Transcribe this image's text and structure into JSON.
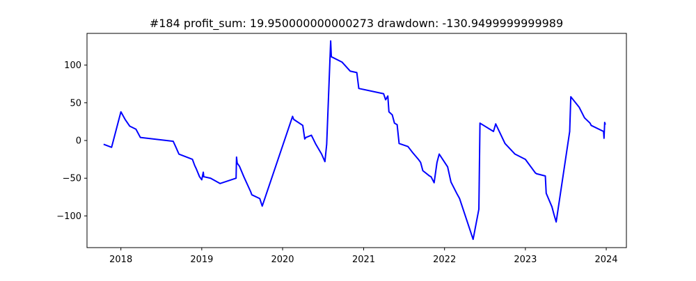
{
  "chart_data": {
    "type": "line",
    "title": "#184   profit_sum: 19.950000000000273 drawdown: -130.9499999999989",
    "xlabel": "",
    "ylabel": "",
    "x_axis": {
      "type": "date",
      "range": [
        "2017-08-01",
        "2024-04-01"
      ],
      "ticks": [
        "2018",
        "2019",
        "2020",
        "2021",
        "2022",
        "2023",
        "2024"
      ]
    },
    "y_axis": {
      "range": [
        -142,
        142
      ],
      "ticks": [
        -100,
        -50,
        0,
        50,
        100
      ],
      "tick_labels": [
        "−100",
        "−50",
        "0",
        "50",
        "100"
      ]
    },
    "grid": false,
    "legend": "none",
    "colors": {
      "line": "#0000ff"
    },
    "series": [
      {
        "x": [
          "2017-10-15",
          "2017-11-20",
          "2018-01-01",
          "2018-01-20",
          "2018-02-10",
          "2018-03-10",
          "2018-03-30",
          "2018-08-25",
          "2018-09-05",
          "2018-09-20",
          "2018-11-20",
          "2018-11-30",
          "2018-12-08",
          "2018-12-22",
          "2019-01-01",
          "2019-01-08",
          "2019-01-10",
          "2019-02-10",
          "2019-03-25",
          "2019-06-05",
          "2019-06-07",
          "2019-06-10",
          "2019-06-20",
          "2019-07-10",
          "2019-08-10",
          "2019-08-15",
          "2019-09-20",
          "2019-10-01",
          "2020-02-15",
          "2020-02-20",
          "2020-04-01",
          "2020-04-10",
          "2020-04-15",
          "2020-05-10",
          "2020-05-30",
          "2020-06-25",
          "2020-07-10",
          "2020-07-18",
          "2020-08-05",
          "2020-08-08",
          "2020-08-15",
          "2020-09-25",
          "2020-11-01",
          "2020-12-01",
          "2020-12-10",
          "2021-04-01",
          "2021-04-10",
          "2021-04-20",
          "2021-04-25",
          "2021-05-10",
          "2021-05-20",
          "2021-06-01",
          "2021-06-10",
          "2021-07-20",
          "2021-08-10",
          "2021-09-05",
          "2021-09-15",
          "2021-09-25",
          "2021-10-25",
          "2021-11-01",
          "2021-11-15",
          "2021-11-28",
          "2021-12-08",
          "2022-01-15",
          "2022-01-30",
          "2022-02-25",
          "2022-03-10",
          "2022-05-10",
          "2022-06-05",
          "2022-06-10",
          "2022-08-10",
          "2022-08-20",
          "2022-10-01",
          "2022-11-15",
          "2023-01-01",
          "2023-02-15",
          "2023-02-20",
          "2023-04-01",
          "2023-04-05",
          "2023-05-01",
          "2023-05-10",
          "2023-05-20",
          "2023-07-20",
          "2023-07-25",
          "2023-09-01",
          "2023-09-25",
          "2023-10-20",
          "2023-10-25",
          "2023-12-20",
          "2023-12-22",
          "2023-12-25",
          "2023-12-28"
        ],
        "y": [
          -5,
          -9,
          38,
          28,
          19,
          15,
          4,
          -1,
          -8,
          -18,
          -25,
          -33,
          -38,
          -48,
          -52,
          -42,
          -48,
          -50,
          -57,
          -50,
          -22,
          -30,
          -34,
          -48,
          -68,
          -72,
          -77,
          -87,
          32,
          28,
          20,
          2,
          4,
          7,
          -5,
          -18,
          -28,
          -5,
          132,
          111,
          110,
          104,
          92,
          90,
          69,
          62,
          54,
          59,
          38,
          34,
          23,
          21,
          -4,
          -8,
          -16,
          -25,
          -29,
          -40,
          -47,
          -48,
          -56,
          -29,
          -18,
          -35,
          -55,
          -70,
          -77,
          -131,
          -91,
          23,
          12,
          22,
          -4,
          -18,
          -25,
          -43,
          -44,
          -47,
          -70,
          -88,
          -98,
          -108,
          12,
          58,
          44,
          30,
          23,
          20,
          12,
          3,
          24,
          21
        ]
      }
    ]
  }
}
